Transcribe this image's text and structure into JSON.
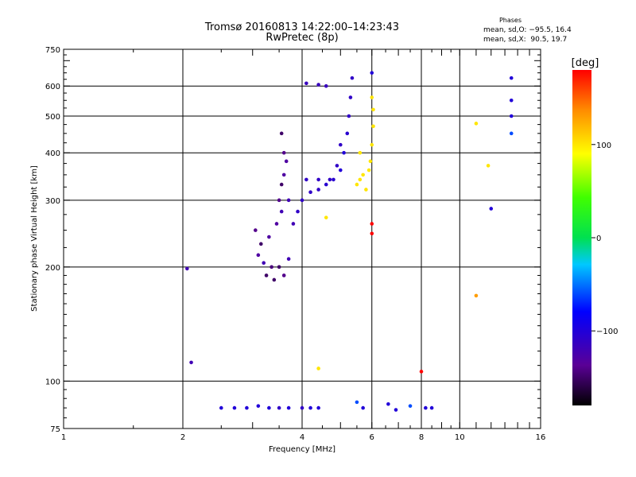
{
  "chart_data": {
    "type": "scatter",
    "title": "Tromsø 20160813 14:22:00–14:23:43",
    "subtitle": "RwPretec (8p)",
    "xlabel": "Frequency [MHz]",
    "ylabel": "Stationary phase Virtual Height [km]",
    "x_scale": "log",
    "y_scale": "log",
    "xlim": [
      1,
      16
    ],
    "ylim": [
      75,
      750
    ],
    "grid": true,
    "x_ticks": [
      "1",
      "2",
      "4",
      "6",
      "8",
      "10",
      "16"
    ],
    "y_ticks": [
      "75",
      "100",
      "200",
      "300",
      "400",
      "500",
      "600",
      "750"
    ],
    "stats": {
      "header": "Phases",
      "line1": "mean, sd,O: −95.5, 16.4",
      "line2": "mean, sd,X:  90.5, 19.7"
    },
    "colorbar": {
      "label": "[deg]",
      "range": [
        -180,
        180
      ],
      "ticks": [
        "100",
        "0",
        "−100"
      ]
    },
    "series": [
      {
        "points": [
          [
            2.05,
            198,
            -120
          ],
          [
            2.1,
            112,
            -120
          ],
          [
            3.05,
            250,
            -140
          ],
          [
            3.1,
            215,
            -130
          ],
          [
            3.15,
            230,
            -150
          ],
          [
            3.2,
            205,
            -120
          ],
          [
            3.25,
            190,
            -150
          ],
          [
            3.3,
            240,
            -130
          ],
          [
            3.35,
            200,
            -145
          ],
          [
            3.4,
            185,
            -150
          ],
          [
            3.45,
            260,
            -130
          ],
          [
            3.5,
            200,
            -150
          ],
          [
            3.55,
            280,
            -120
          ],
          [
            3.6,
            190,
            -140
          ],
          [
            3.7,
            210,
            -120
          ],
          [
            3.5,
            300,
            -140
          ],
          [
            3.55,
            330,
            -150
          ],
          [
            3.6,
            350,
            -130
          ],
          [
            3.6,
            400,
            -140
          ],
          [
            3.55,
            450,
            -150
          ],
          [
            3.65,
            380,
            -130
          ],
          [
            3.7,
            300,
            -120
          ],
          [
            3.8,
            260,
            -120
          ],
          [
            3.9,
            280,
            -110
          ],
          [
            4.0,
            300,
            -110
          ],
          [
            4.2,
            315,
            -110
          ],
          [
            4.4,
            320,
            -110
          ],
          [
            4.6,
            330,
            -105
          ],
          [
            4.8,
            340,
            -105
          ],
          [
            5.0,
            360,
            -100
          ],
          [
            5.1,
            400,
            -100
          ],
          [
            5.2,
            450,
            -105
          ],
          [
            5.25,
            500,
            -110
          ],
          [
            5.3,
            560,
            -110
          ],
          [
            5.35,
            630,
            -110
          ],
          [
            4.1,
            610,
            -115
          ],
          [
            4.4,
            605,
            -115
          ],
          [
            4.6,
            600,
            -115
          ],
          [
            4.1,
            340,
            -110
          ],
          [
            4.4,
            340,
            -110
          ],
          [
            4.7,
            340,
            -110
          ],
          [
            4.9,
            370,
            -110
          ],
          [
            5.0,
            420,
            -110
          ],
          [
            5.8,
            320,
            100
          ],
          [
            5.6,
            340,
            100
          ],
          [
            5.9,
            360,
            100
          ],
          [
            5.95,
            380,
            100
          ],
          [
            6.0,
            420,
            100
          ],
          [
            6.05,
            470,
            100
          ],
          [
            6.05,
            520,
            100
          ],
          [
            6.0,
            560,
            100
          ],
          [
            5.7,
            350,
            100
          ],
          [
            5.5,
            330,
            100
          ],
          [
            5.6,
            400,
            100
          ],
          [
            4.6,
            270,
            100
          ],
          [
            4.4,
            108,
            100
          ],
          [
            11.0,
            478,
            100
          ],
          [
            11.8,
            370,
            100
          ],
          [
            11.0,
            168,
            130
          ],
          [
            6.0,
            260,
            180
          ],
          [
            6.0,
            245,
            180
          ],
          [
            8.0,
            106,
            180
          ],
          [
            6.0,
            650,
            -100
          ],
          [
            13.5,
            630,
            -100
          ],
          [
            13.5,
            550,
            -100
          ],
          [
            13.5,
            500,
            -100
          ],
          [
            13.5,
            450,
            -60
          ],
          [
            12.0,
            285,
            -100
          ],
          [
            2.5,
            85,
            -100
          ],
          [
            2.7,
            85,
            -100
          ],
          [
            2.9,
            85,
            -100
          ],
          [
            3.1,
            86,
            -100
          ],
          [
            3.3,
            85,
            -100
          ],
          [
            3.5,
            85,
            -110
          ],
          [
            3.7,
            85,
            -100
          ],
          [
            4.0,
            85,
            -110
          ],
          [
            4.2,
            85,
            -100
          ],
          [
            4.4,
            85,
            -100
          ],
          [
            5.5,
            88,
            -60
          ],
          [
            5.7,
            85,
            -100
          ],
          [
            6.6,
            87,
            -100
          ],
          [
            6.9,
            84,
            -100
          ],
          [
            7.5,
            86,
            -60
          ],
          [
            8.2,
            85,
            -100
          ],
          [
            8.5,
            85,
            -100
          ]
        ]
      }
    ]
  }
}
